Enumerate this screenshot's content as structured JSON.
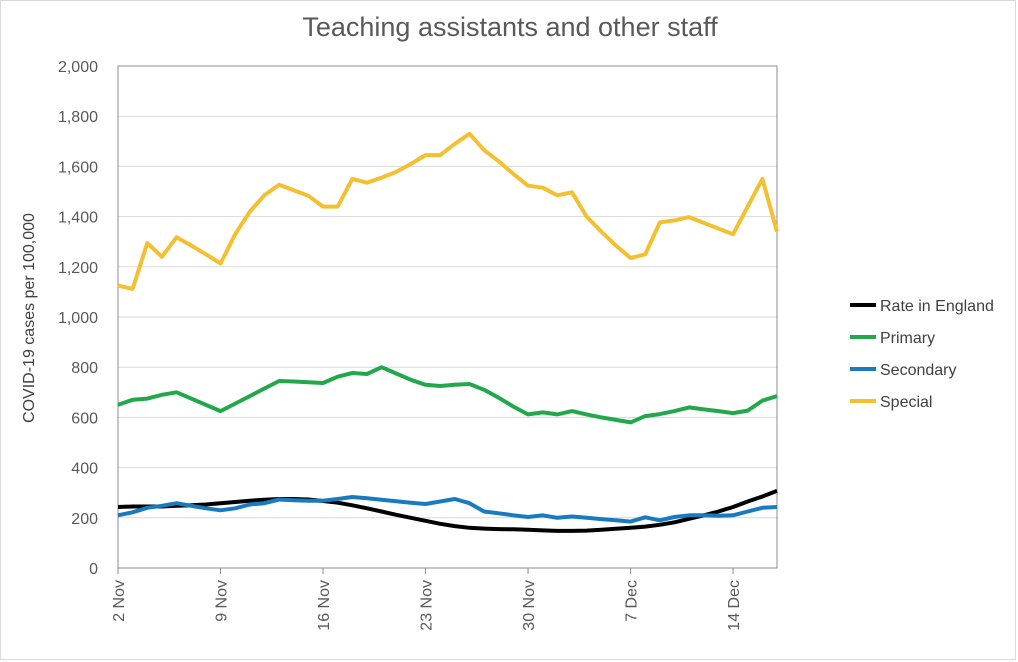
{
  "chart_data": {
    "type": "line",
    "title": "Teaching assistants and other staff",
    "xlabel": "",
    "ylabel": "COVID-19 cases per 100,000",
    "ylim": [
      0,
      2000
    ],
    "yticks": [
      "0",
      "200",
      "400",
      "600",
      "800",
      "1,000",
      "1,200",
      "1,400",
      "1,600",
      "1,800",
      "2,000"
    ],
    "xticks": [
      {
        "day": 0,
        "label": "2 Nov"
      },
      {
        "day": 7,
        "label": "9 Nov"
      },
      {
        "day": 14,
        "label": "16 Nov"
      },
      {
        "day": 21,
        "label": "23 Nov"
      },
      {
        "day": 28,
        "label": "30 Nov"
      },
      {
        "day": 35,
        "label": "7 Dec"
      },
      {
        "day": 42,
        "label": "14 Dec"
      }
    ],
    "xlim": [
      0,
      45
    ],
    "grid": "horizontal",
    "legend_position": "right",
    "series": [
      {
        "name": "Rate in England",
        "color": "#000000",
        "points": [
          [
            0,
            243
          ],
          [
            1,
            245
          ],
          [
            2,
            245
          ],
          [
            3,
            245
          ],
          [
            4,
            248
          ],
          [
            5,
            250
          ],
          [
            6,
            253
          ],
          [
            7,
            258
          ],
          [
            8,
            263
          ],
          [
            9,
            268
          ],
          [
            10,
            272
          ],
          [
            11,
            275
          ],
          [
            12,
            275
          ],
          [
            13,
            273
          ],
          [
            14,
            267
          ],
          [
            15,
            260
          ],
          [
            16,
            250
          ],
          [
            17,
            238
          ],
          [
            18,
            225
          ],
          [
            19,
            212
          ],
          [
            20,
            200
          ],
          [
            21,
            188
          ],
          [
            22,
            176
          ],
          [
            23,
            167
          ],
          [
            24,
            160
          ],
          [
            25,
            157
          ],
          [
            26,
            155
          ],
          [
            27,
            154
          ],
          [
            28,
            152
          ],
          [
            29,
            150
          ],
          [
            30,
            148
          ],
          [
            31,
            148
          ],
          [
            32,
            149
          ],
          [
            33,
            152
          ],
          [
            34,
            156
          ],
          [
            35,
            160
          ],
          [
            36,
            165
          ],
          [
            37,
            172
          ],
          [
            38,
            182
          ],
          [
            39,
            196
          ],
          [
            40,
            210
          ],
          [
            41,
            225
          ],
          [
            42,
            243
          ],
          [
            43,
            265
          ],
          [
            44,
            285
          ],
          [
            45,
            307
          ]
        ]
      },
      {
        "name": "Primary",
        "color": "#22a84a",
        "points": [
          [
            0,
            650
          ],
          [
            1,
            670
          ],
          [
            2,
            675
          ],
          [
            3,
            690
          ],
          [
            4,
            700
          ],
          [
            5,
            675
          ],
          [
            6,
            650
          ],
          [
            7,
            625
          ],
          [
            8,
            655
          ],
          [
            9,
            685
          ],
          [
            10,
            715
          ],
          [
            11,
            745
          ],
          [
            12,
            743
          ],
          [
            13,
            740
          ],
          [
            14,
            737
          ],
          [
            15,
            762
          ],
          [
            16,
            777
          ],
          [
            17,
            773
          ],
          [
            18,
            800
          ],
          [
            19,
            775
          ],
          [
            20,
            750
          ],
          [
            21,
            730
          ],
          [
            22,
            725
          ],
          [
            23,
            730
          ],
          [
            24,
            733
          ],
          [
            25,
            710
          ],
          [
            26,
            678
          ],
          [
            27,
            643
          ],
          [
            28,
            612
          ],
          [
            29,
            620
          ],
          [
            30,
            612
          ],
          [
            31,
            625
          ],
          [
            32,
            612
          ],
          [
            33,
            600
          ],
          [
            34,
            590
          ],
          [
            35,
            580
          ],
          [
            36,
            605
          ],
          [
            37,
            613
          ],
          [
            38,
            625
          ],
          [
            39,
            640
          ],
          [
            40,
            632
          ],
          [
            41,
            625
          ],
          [
            42,
            617
          ],
          [
            43,
            627
          ],
          [
            44,
            667
          ],
          [
            45,
            685
          ]
        ]
      },
      {
        "name": "Secondary",
        "color": "#1a7abf",
        "points": [
          [
            0,
            210
          ],
          [
            1,
            222
          ],
          [
            2,
            240
          ],
          [
            3,
            248
          ],
          [
            4,
            258
          ],
          [
            5,
            248
          ],
          [
            6,
            238
          ],
          [
            7,
            230
          ],
          [
            8,
            238
          ],
          [
            9,
            253
          ],
          [
            10,
            258
          ],
          [
            11,
            273
          ],
          [
            12,
            270
          ],
          [
            13,
            268
          ],
          [
            14,
            268
          ],
          [
            15,
            275
          ],
          [
            16,
            283
          ],
          [
            17,
            278
          ],
          [
            18,
            272
          ],
          [
            19,
            266
          ],
          [
            20,
            260
          ],
          [
            21,
            255
          ],
          [
            22,
            265
          ],
          [
            23,
            275
          ],
          [
            24,
            258
          ],
          [
            25,
            225
          ],
          [
            26,
            218
          ],
          [
            27,
            210
          ],
          [
            28,
            203
          ],
          [
            29,
            210
          ],
          [
            30,
            200
          ],
          [
            31,
            205
          ],
          [
            32,
            200
          ],
          [
            33,
            195
          ],
          [
            34,
            190
          ],
          [
            35,
            185
          ],
          [
            36,
            202
          ],
          [
            37,
            190
          ],
          [
            38,
            203
          ],
          [
            39,
            210
          ],
          [
            40,
            210
          ],
          [
            41,
            208
          ],
          [
            42,
            210
          ],
          [
            43,
            225
          ],
          [
            44,
            240
          ],
          [
            45,
            243
          ]
        ]
      },
      {
        "name": "Special",
        "color": "#f4c031",
        "points": [
          [
            0,
            1125
          ],
          [
            1,
            1112
          ],
          [
            2,
            1295
          ],
          [
            3,
            1240
          ],
          [
            4,
            1318
          ],
          [
            5,
            1285
          ],
          [
            6,
            1250
          ],
          [
            7,
            1213
          ],
          [
            8,
            1330
          ],
          [
            9,
            1420
          ],
          [
            10,
            1485
          ],
          [
            11,
            1527
          ],
          [
            12,
            1505
          ],
          [
            13,
            1483
          ],
          [
            14,
            1440
          ],
          [
            15,
            1440
          ],
          [
            16,
            1550
          ],
          [
            17,
            1535
          ],
          [
            18,
            1555
          ],
          [
            19,
            1578
          ],
          [
            20,
            1610
          ],
          [
            21,
            1645
          ],
          [
            22,
            1645
          ],
          [
            23,
            1690
          ],
          [
            24,
            1730
          ],
          [
            25,
            1665
          ],
          [
            26,
            1620
          ],
          [
            27,
            1570
          ],
          [
            28,
            1523
          ],
          [
            29,
            1515
          ],
          [
            30,
            1485
          ],
          [
            31,
            1497
          ],
          [
            32,
            1400
          ],
          [
            33,
            1340
          ],
          [
            34,
            1285
          ],
          [
            35,
            1235
          ],
          [
            36,
            1250
          ],
          [
            37,
            1377
          ],
          [
            38,
            1385
          ],
          [
            39,
            1398
          ],
          [
            40,
            1375
          ],
          [
            41,
            1352
          ],
          [
            42,
            1330
          ],
          [
            43,
            1440
          ],
          [
            44,
            1550
          ],
          [
            45,
            1340
          ]
        ]
      }
    ]
  }
}
